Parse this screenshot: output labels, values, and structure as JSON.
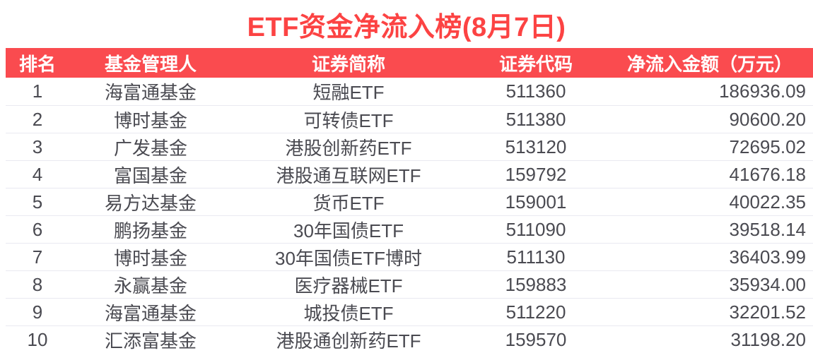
{
  "title": "ETF资金净流入榜(8月7日)",
  "colors": {
    "accent": "#fc4343",
    "header_bg": "#fa4b4f",
    "header_text": "#ffffff",
    "row_text": "#4a4a51",
    "divider": "#e9e9f1"
  },
  "table": {
    "headers": [
      "排名",
      "基金管理人",
      "证券简称",
      "证券代码",
      "净流入金额（万元）"
    ],
    "rows": [
      [
        "1",
        "海富通基金",
        "短融ETF",
        "511360",
        "186936.09"
      ],
      [
        "2",
        "博时基金",
        "可转债ETF",
        "511380",
        "90600.20"
      ],
      [
        "3",
        "广发基金",
        "港股创新药ETF",
        "513120",
        "72695.02"
      ],
      [
        "4",
        "富国基金",
        "港股通互联网ETF",
        "159792",
        "41676.18"
      ],
      [
        "5",
        "易方达基金",
        "货币ETF",
        "159001",
        "40022.35"
      ],
      [
        "6",
        "鹏扬基金",
        "30年国债ETF",
        "511090",
        "39518.14"
      ],
      [
        "7",
        "博时基金",
        "30年国债ETF博时",
        "511130",
        "36403.99"
      ],
      [
        "8",
        "永赢基金",
        "医疗器械ETF",
        "159883",
        "35934.00"
      ],
      [
        "9",
        "海富通基金",
        "城投债ETF",
        "511220",
        "32201.52"
      ],
      [
        "10",
        "汇添富基金",
        "港股通创新药ETF",
        "159570",
        "31198.20"
      ]
    ]
  },
  "chart_data": {
    "type": "table",
    "title": "ETF资金净流入榜(8月7日)",
    "columns": [
      "排名",
      "基金管理人",
      "证券简称",
      "证券代码",
      "净流入金额（万元）"
    ],
    "rows": [
      {
        "rank": 1,
        "manager": "海富通基金",
        "security_name": "短融ETF",
        "security_code": "511360",
        "net_inflow_wan": 186936.09
      },
      {
        "rank": 2,
        "manager": "博时基金",
        "security_name": "可转债ETF",
        "security_code": "511380",
        "net_inflow_wan": 90600.2
      },
      {
        "rank": 3,
        "manager": "广发基金",
        "security_name": "港股创新药ETF",
        "security_code": "513120",
        "net_inflow_wan": 72695.02
      },
      {
        "rank": 4,
        "manager": "富国基金",
        "security_name": "港股通互联网ETF",
        "security_code": "159792",
        "net_inflow_wan": 41676.18
      },
      {
        "rank": 5,
        "manager": "易方达基金",
        "security_name": "货币ETF",
        "security_code": "159001",
        "net_inflow_wan": 40022.35
      },
      {
        "rank": 6,
        "manager": "鹏扬基金",
        "security_name": "30年国债ETF",
        "security_code": "511090",
        "net_inflow_wan": 39518.14
      },
      {
        "rank": 7,
        "manager": "博时基金",
        "security_name": "30年国债ETF博时",
        "security_code": "511130",
        "net_inflow_wan": 36403.99
      },
      {
        "rank": 8,
        "manager": "永赢基金",
        "security_name": "医疗器械ETF",
        "security_code": "159883",
        "net_inflow_wan": 35934.0
      },
      {
        "rank": 9,
        "manager": "海富通基金",
        "security_name": "城投债ETF",
        "security_code": "511220",
        "net_inflow_wan": 32201.52
      },
      {
        "rank": 10,
        "manager": "汇添富基金",
        "security_name": "港股通创新药ETF",
        "security_code": "159570",
        "net_inflow_wan": 31198.2
      }
    ],
    "layout": {
      "amount_column_align": "right",
      "other_columns_align": "center",
      "header_style": "red-band"
    }
  }
}
